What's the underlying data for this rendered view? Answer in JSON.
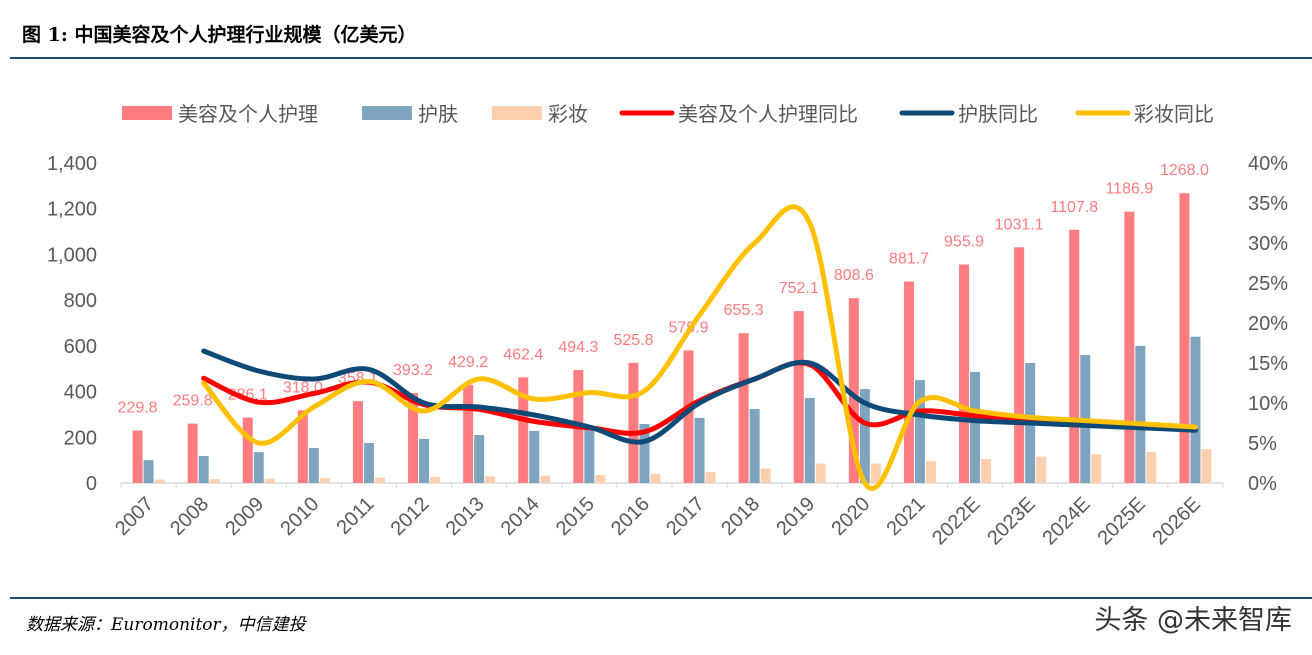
{
  "title": "图 1: 中国美容及个人护理行业规模（亿美元）",
  "source": "数据来源：Euromonitor，中信建投",
  "watermark": "头条 @未来智库",
  "chart_data": {
    "type": "bar+line",
    "categories": [
      "2007",
      "2008",
      "2009",
      "2010",
      "2011",
      "2012",
      "2013",
      "2014",
      "2015",
      "2016",
      "2017",
      "2018",
      "2019",
      "2020",
      "2021",
      "2022E",
      "2023E",
      "2024E",
      "2025E",
      "2026E"
    ],
    "y_left": {
      "range": [
        0,
        1400
      ],
      "ticks": [
        "0",
        "200",
        "400",
        "600",
        "800",
        "1,000",
        "1,200",
        "1,400"
      ]
    },
    "y_right": {
      "range": [
        0,
        40
      ],
      "ticks": [
        "0%",
        "5%",
        "10%",
        "15%",
        "20%",
        "25%",
        "30%",
        "35%",
        "40%"
      ]
    },
    "legend_position": "top",
    "grid": false,
    "series": [
      {
        "name": "美容及个人护理",
        "kind": "bar",
        "axis": "left",
        "color": "#ff7c80",
        "labels": true,
        "values": [
          229.8,
          259.8,
          286.1,
          318.0,
          358.1,
          393.2,
          429.2,
          462.4,
          494.3,
          525.8,
          579.9,
          655.3,
          752.1,
          808.6,
          881.7,
          955.9,
          1031.1,
          1107.8,
          1186.9,
          1268.0
        ]
      },
      {
        "name": "护肤",
        "kind": "bar",
        "axis": "left",
        "color": "#7fa4c0",
        "values": [
          100,
          118,
          135,
          153,
          175,
          193,
          210,
          228,
          245,
          258,
          285,
          324,
          372,
          411,
          450,
          486,
          525,
          560,
          600,
          640
        ]
      },
      {
        "name": "彩妆",
        "kind": "bar",
        "axis": "left",
        "color": "#fcd0ae",
        "values": [
          15,
          17,
          19,
          21,
          24,
          26,
          29,
          32,
          35,
          40,
          48,
          63,
          85,
          85,
          95,
          105,
          115,
          125,
          135,
          148
        ]
      },
      {
        "name": "美容及个人护理同比",
        "kind": "line",
        "axis": "right",
        "color": "#ff0000",
        "values": [
          null,
          13.1,
          10.1,
          11.2,
          12.6,
          9.8,
          9.2,
          7.7,
          6.9,
          6.4,
          10.3,
          13.0,
          14.8,
          7.5,
          9.0,
          8.4,
          7.9,
          7.4,
          7.1,
          6.8
        ]
      },
      {
        "name": "护肤同比",
        "kind": "line",
        "axis": "right",
        "color": "#0e4a78",
        "values": [
          null,
          16.5,
          14.0,
          13.0,
          14.2,
          10.0,
          9.5,
          8.5,
          7.0,
          5.2,
          10.0,
          13.0,
          15.0,
          10.0,
          8.5,
          7.8,
          7.5,
          7.2,
          6.9,
          6.6
        ]
      },
      {
        "name": "彩妆同比",
        "kind": "line",
        "axis": "right",
        "color": "#ffc000",
        "values": [
          null,
          12.5,
          5.0,
          9.5,
          12.7,
          9.0,
          13.0,
          10.5,
          11.3,
          11.5,
          21.0,
          30.0,
          32.5,
          0.0,
          10.2,
          9.0,
          8.2,
          7.8,
          7.4,
          7.0
        ]
      }
    ]
  }
}
